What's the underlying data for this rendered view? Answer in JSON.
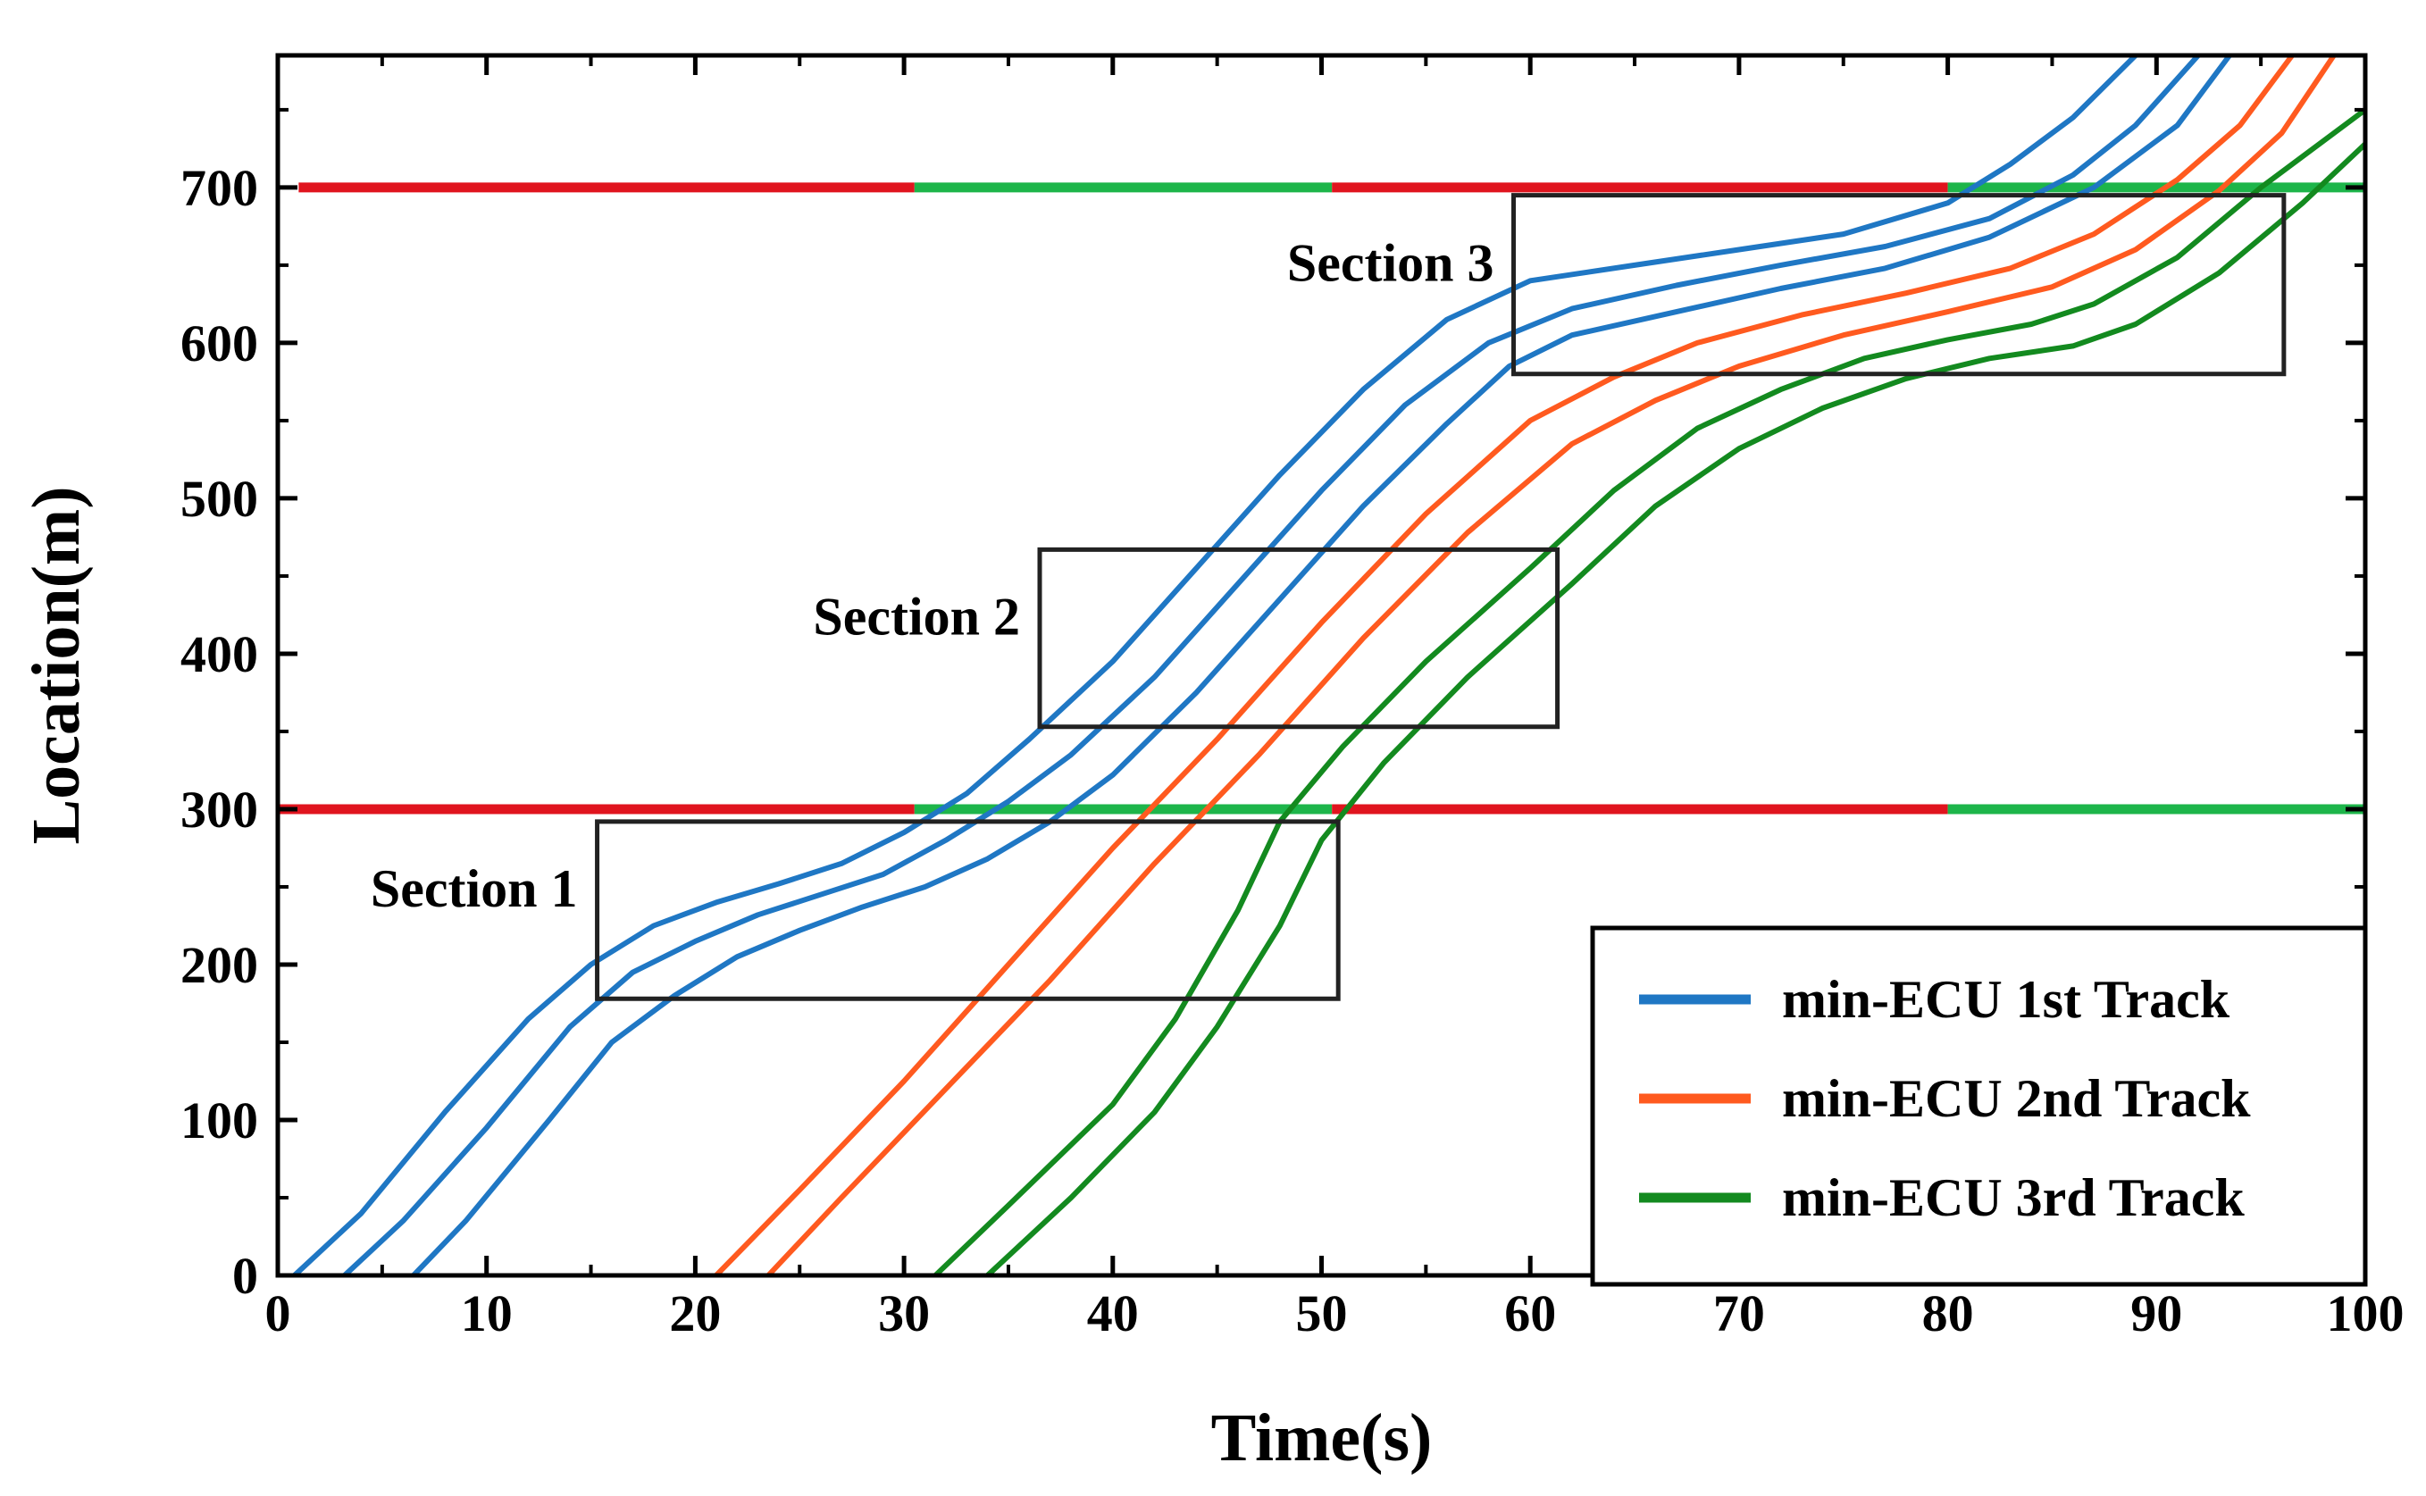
{
  "chart_data": {
    "type": "line",
    "title": "",
    "xlabel": "Time(s)",
    "ylabel": "Location(m)",
    "xlim": [
      0,
      100
    ],
    "ylim": [
      0,
      785
    ],
    "xticks": [
      0,
      10,
      20,
      30,
      40,
      50,
      60,
      70,
      80,
      90,
      100
    ],
    "yticks": [
      0,
      100,
      200,
      300,
      400,
      500,
      600,
      700
    ],
    "grid": false,
    "legend_position": "bottom-right",
    "colors": {
      "track1": "#1f77c4",
      "track2": "#ff5a1f",
      "track3": "#138a1f",
      "signal_red": "#e0141e",
      "signal_green": "#1db54a"
    },
    "series": [
      {
        "name": "min-ECU 1st Track",
        "color": "#1f77c4",
        "points": [
          [
            0.8,
            0
          ],
          [
            4,
            40
          ],
          [
            8,
            105
          ],
          [
            12,
            165
          ],
          [
            15,
            200
          ],
          [
            18,
            225
          ],
          [
            21,
            240
          ],
          [
            24,
            252
          ],
          [
            27,
            265
          ],
          [
            30,
            285
          ],
          [
            33,
            310
          ],
          [
            36,
            345
          ],
          [
            40,
            395
          ],
          [
            44,
            455
          ],
          [
            48,
            515
          ],
          [
            52,
            570
          ],
          [
            56,
            615
          ],
          [
            60,
            640
          ],
          [
            65,
            650
          ],
          [
            70,
            660
          ],
          [
            75,
            670
          ],
          [
            80,
            690
          ],
          [
            83,
            715
          ],
          [
            86,
            745
          ],
          [
            89,
            785
          ]
        ]
      },
      {
        "name": "min-ECU 1st Track",
        "color": "#1f77c4",
        "points": [
          [
            3.2,
            0
          ],
          [
            6,
            35
          ],
          [
            10,
            95
          ],
          [
            14,
            160
          ],
          [
            17,
            195
          ],
          [
            20,
            215
          ],
          [
            23,
            232
          ],
          [
            26,
            245
          ],
          [
            29,
            258
          ],
          [
            32,
            280
          ],
          [
            35,
            305
          ],
          [
            38,
            335
          ],
          [
            42,
            385
          ],
          [
            46,
            445
          ],
          [
            50,
            505
          ],
          [
            54,
            560
          ],
          [
            58,
            600
          ],
          [
            62,
            622
          ],
          [
            67,
            637
          ],
          [
            72,
            650
          ],
          [
            77,
            662
          ],
          [
            82,
            680
          ],
          [
            86,
            708
          ],
          [
            89,
            740
          ],
          [
            92,
            785
          ]
        ]
      },
      {
        "name": "min-ECU 1st Track",
        "color": "#1f77c4",
        "points": [
          [
            6.5,
            0
          ],
          [
            9,
            35
          ],
          [
            13,
            100
          ],
          [
            16,
            150
          ],
          [
            19,
            180
          ],
          [
            22,
            205
          ],
          [
            25,
            222
          ],
          [
            28,
            237
          ],
          [
            31,
            250
          ],
          [
            34,
            268
          ],
          [
            37,
            292
          ],
          [
            40,
            322
          ],
          [
            44,
            375
          ],
          [
            48,
            435
          ],
          [
            52,
            495
          ],
          [
            56,
            548
          ],
          [
            59,
            585
          ],
          [
            62,
            605
          ],
          [
            67,
            620
          ],
          [
            72,
            635
          ],
          [
            77,
            648
          ],
          [
            82,
            668
          ],
          [
            87,
            700
          ],
          [
            91,
            740
          ],
          [
            93.5,
            785
          ]
        ]
      },
      {
        "name": "min-ECU 2nd Track",
        "color": "#ff5a1f",
        "points": [
          [
            21,
            0
          ],
          [
            25,
            55
          ],
          [
            30,
            125
          ],
          [
            35,
            200
          ],
          [
            40,
            275
          ],
          [
            45,
            345
          ],
          [
            50,
            420
          ],
          [
            55,
            490
          ],
          [
            60,
            550
          ],
          [
            64,
            578
          ],
          [
            68,
            600
          ],
          [
            73,
            618
          ],
          [
            78,
            632
          ],
          [
            83,
            648
          ],
          [
            87,
            670
          ],
          [
            91,
            705
          ],
          [
            94,
            740
          ],
          [
            96.5,
            785
          ]
        ]
      },
      {
        "name": "min-ECU 2nd Track",
        "color": "#ff5a1f",
        "points": [
          [
            23.5,
            0
          ],
          [
            27,
            50
          ],
          [
            32,
            120
          ],
          [
            37,
            190
          ],
          [
            42,
            265
          ],
          [
            47,
            335
          ],
          [
            52,
            410
          ],
          [
            57,
            478
          ],
          [
            62,
            535
          ],
          [
            66,
            563
          ],
          [
            70,
            585
          ],
          [
            75,
            605
          ],
          [
            80,
            620
          ],
          [
            85,
            636
          ],
          [
            89,
            660
          ],
          [
            93,
            698
          ],
          [
            96,
            735
          ],
          [
            98.5,
            785
          ]
        ]
      },
      {
        "name": "min-ECU 3rd Track",
        "color": "#138a1f",
        "points": [
          [
            31.5,
            0
          ],
          [
            35,
            45
          ],
          [
            40,
            110
          ],
          [
            43,
            165
          ],
          [
            46,
            235
          ],
          [
            48,
            292
          ],
          [
            51,
            340
          ],
          [
            55,
            395
          ],
          [
            60,
            455
          ],
          [
            64,
            505
          ],
          [
            68,
            545
          ],
          [
            72,
            570
          ],
          [
            76,
            590
          ],
          [
            80,
            602
          ],
          [
            84,
            612
          ],
          [
            87,
            625
          ],
          [
            91,
            655
          ],
          [
            95,
            700
          ],
          [
            100,
            750
          ]
        ]
      },
      {
        "name": "min-ECU 3rd Track",
        "color": "#138a1f",
        "points": [
          [
            34,
            0
          ],
          [
            38,
            50
          ],
          [
            42,
            105
          ],
          [
            45,
            160
          ],
          [
            48,
            225
          ],
          [
            50,
            280
          ],
          [
            53,
            330
          ],
          [
            57,
            385
          ],
          [
            62,
            445
          ],
          [
            66,
            495
          ],
          [
            70,
            532
          ],
          [
            74,
            558
          ],
          [
            78,
            577
          ],
          [
            82,
            590
          ],
          [
            86,
            598
          ],
          [
            89,
            612
          ],
          [
            93,
            645
          ],
          [
            97,
            690
          ],
          [
            100,
            728
          ]
        ]
      }
    ],
    "signals": [
      {
        "location": 300,
        "segments": [
          {
            "start": 0,
            "end": 30.5,
            "state": "red"
          },
          {
            "start": 30.5,
            "end": 50.5,
            "state": "green"
          },
          {
            "start": 50.5,
            "end": 80,
            "state": "red"
          },
          {
            "start": 80,
            "end": 100,
            "state": "green"
          }
        ]
      },
      {
        "location": 700,
        "segments": [
          {
            "start": 1,
            "end": 30.5,
            "state": "red"
          },
          {
            "start": 30.5,
            "end": 50.5,
            "state": "green"
          },
          {
            "start": 50.5,
            "end": 80,
            "state": "red"
          },
          {
            "start": 80,
            "end": 100,
            "state": "green"
          }
        ]
      }
    ],
    "annotations": [
      {
        "label": "Section 1",
        "x_range": [
          15.3,
          50.8
        ],
        "y_range": [
          178,
          292
        ],
        "label_side": "left"
      },
      {
        "label": "Section 2",
        "x_range": [
          36.5,
          61.3
        ],
        "y_range": [
          353,
          467
        ],
        "label_side": "left"
      },
      {
        "label": "Section 3",
        "x_range": [
          59.2,
          96.1
        ],
        "y_range": [
          580,
          695
        ],
        "label_side": "left"
      }
    ],
    "legend": [
      "min-ECU 1st Track",
      "min-ECU 2nd Track",
      "min-ECU 3rd Track"
    ]
  }
}
